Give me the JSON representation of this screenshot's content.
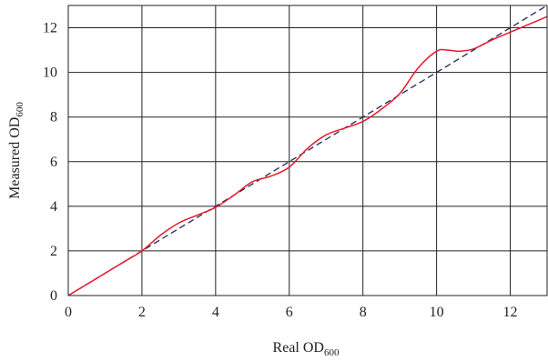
{
  "chart_data": {
    "type": "line",
    "xlabel": {
      "main": "Real OD",
      "sub": "600"
    },
    "ylabel": {
      "main": "Measured OD",
      "sub": "600"
    },
    "xlim": [
      0,
      13
    ],
    "ylim": [
      0,
      13
    ],
    "xticks": [
      0,
      2,
      4,
      6,
      8,
      10,
      12
    ],
    "yticks": [
      0,
      2,
      4,
      6,
      8,
      10,
      12
    ],
    "grid": true,
    "series": [
      {
        "style": "dashed",
        "color": "#1f2a5c",
        "x": [
          0,
          13
        ],
        "y": [
          0,
          13
        ]
      },
      {
        "style": "solid",
        "color": "#e8192c",
        "x": [
          0,
          0.5,
          1,
          1.5,
          2,
          2.5,
          3,
          3.5,
          4,
          4.5,
          5,
          5.5,
          6,
          6.5,
          7,
          7.5,
          8,
          8.5,
          9,
          9.5,
          10,
          10.3,
          10.6,
          11,
          11.5,
          12,
          12.5,
          13
        ],
        "y": [
          0,
          0.5,
          1.0,
          1.5,
          2.0,
          2.7,
          3.25,
          3.6,
          3.95,
          4.5,
          5.1,
          5.35,
          5.75,
          6.6,
          7.2,
          7.5,
          7.8,
          8.35,
          9.05,
          10.2,
          10.95,
          11.0,
          10.95,
          11.05,
          11.45,
          11.8,
          12.15,
          12.5
        ]
      }
    ]
  }
}
